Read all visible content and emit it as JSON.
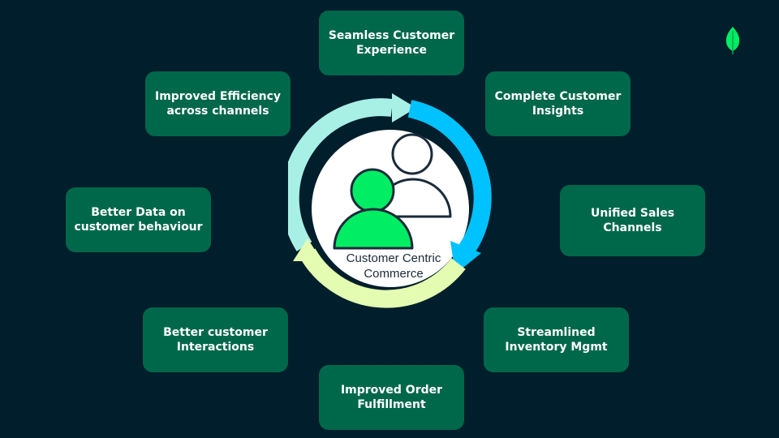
{
  "center": {
    "line1": "Customer Centric",
    "line2": "Commerce"
  },
  "benefits": {
    "seamless": {
      "line1": "Seamless Customer",
      "line2": "Experience"
    },
    "insights": {
      "line1": "Complete Customer",
      "line2": "Insights"
    },
    "efficiency": {
      "line1": "Improved Efficiency",
      "line2": "across channels"
    },
    "unified": {
      "line1": "Unified Sales",
      "line2": "Channels"
    },
    "betterdata": {
      "line1": "Better Data on",
      "line2": "customer behaviour"
    },
    "inventory": {
      "line1": "Streamlined",
      "line2": "Inventory Mgmt"
    },
    "interact": {
      "line1": "Better customer",
      "line2": "Interactions"
    },
    "fulfill": {
      "line1": "Improved Order",
      "line2": "Fulfillment"
    }
  },
  "colors": {
    "background": "#001e2b",
    "box": "#00684a",
    "box_text": "#ffffff",
    "arrow_top": "#a8f0e6",
    "arrow_right": "#00c2ff",
    "arrow_bottom": "#e3fcb1",
    "person_front": "#00ed64",
    "leaf": "#00ed64"
  },
  "icons": {
    "cycle": "circular-arrows-icon",
    "people": "people-icon",
    "logo": "leaf-logo-icon"
  }
}
